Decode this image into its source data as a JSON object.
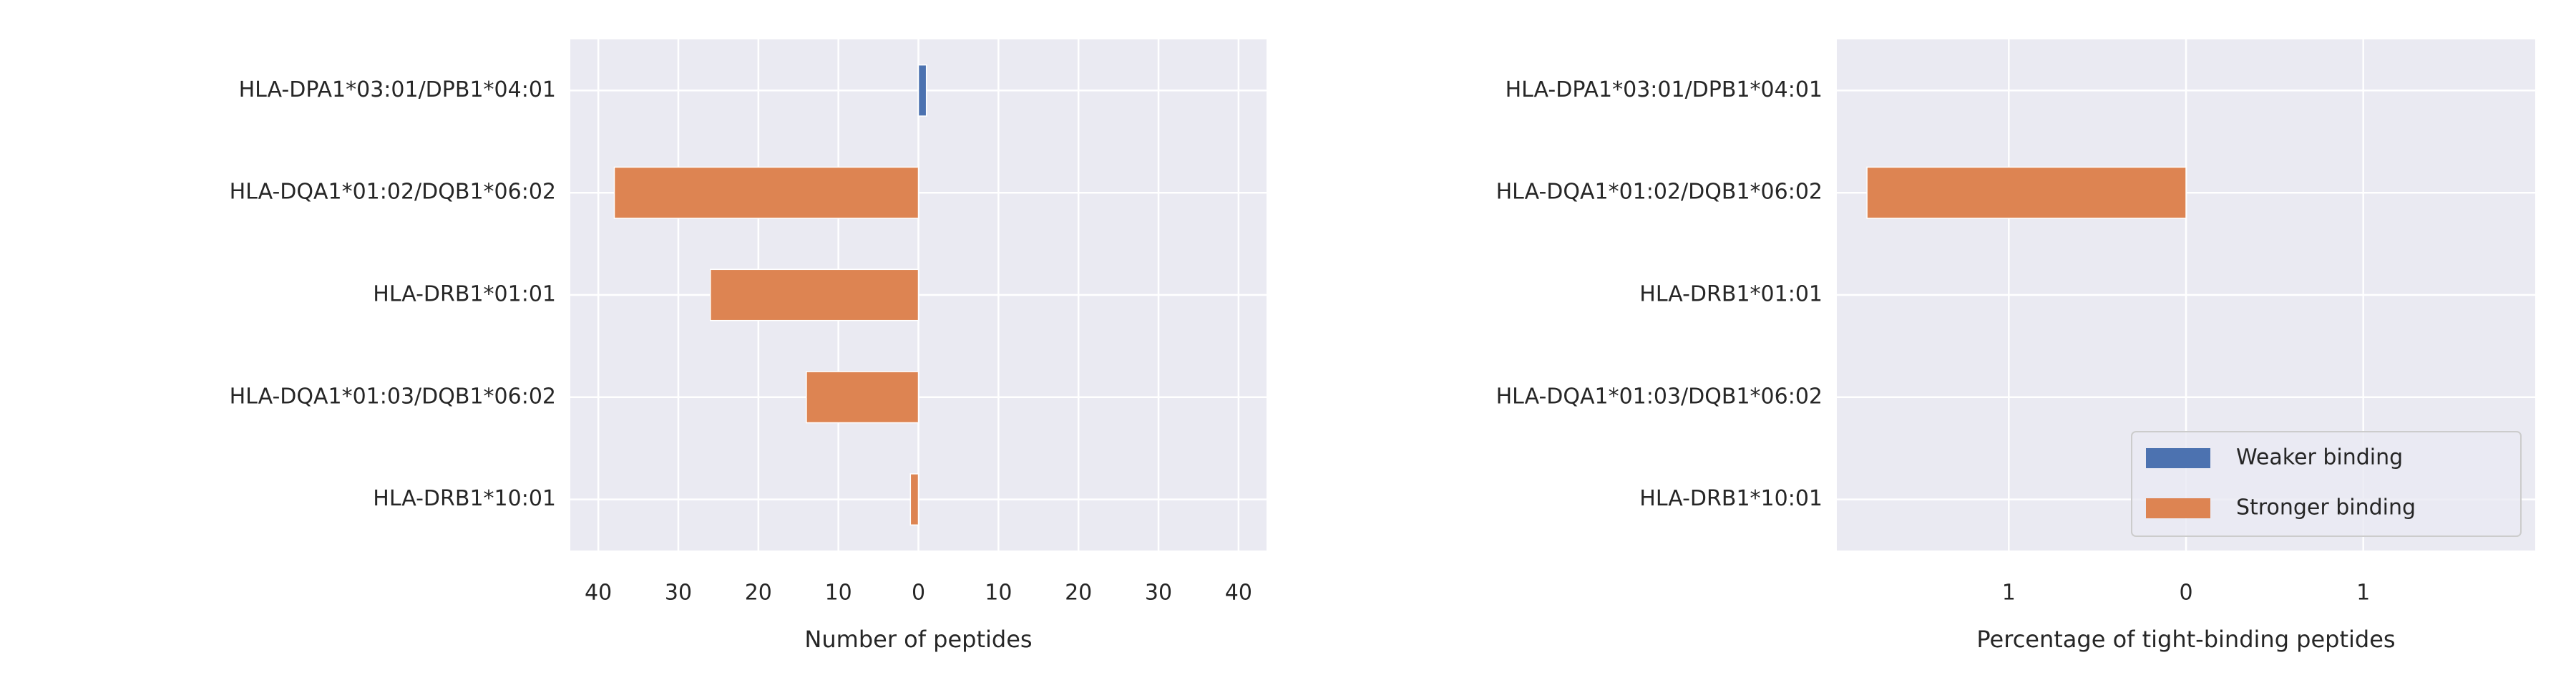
{
  "chart_data": [
    {
      "type": "bar",
      "orientation": "horizontal",
      "xlabel": "Number of peptides",
      "categories": [
        "HLA-DPA1*03:01/DPB1*04:01",
        "HLA-DQA1*01:02/DQB1*06:02",
        "HLA-DRB1*01:01",
        "HLA-DQA1*01:03/DQB1*06:02",
        "HLA-DRB1*10:01"
      ],
      "series": [
        {
          "color": "#4c72b0",
          "values": [
            1,
            0,
            0,
            0,
            0
          ]
        },
        {
          "color": "#dd8452",
          "values": [
            0,
            -38,
            -26,
            -14,
            -1
          ]
        }
      ],
      "xlim": [
        -43.5,
        43.5
      ],
      "xticks": [
        {
          "value": -40,
          "label": "40"
        },
        {
          "value": -30,
          "label": "30"
        },
        {
          "value": -20,
          "label": "20"
        },
        {
          "value": -10,
          "label": "10"
        },
        0,
        10,
        20,
        30,
        40
      ],
      "grid": true
    },
    {
      "type": "bar",
      "orientation": "horizontal",
      "xlabel": "Percentage of tight-binding peptides",
      "categories": [
        "HLA-DPA1*03:01/DPB1*04:01",
        "HLA-DQA1*01:02/DQB1*06:02",
        "HLA-DRB1*01:01",
        "HLA-DQA1*01:03/DQB1*06:02",
        "HLA-DRB1*10:01"
      ],
      "series": [
        {
          "name": "Weaker binding",
          "color": "#4c72b0",
          "values": [
            0,
            0,
            0,
            0,
            0
          ]
        },
        {
          "name": "Stronger binding",
          "color": "#dd8452",
          "values": [
            0,
            -1.8,
            0,
            0,
            0
          ]
        }
      ],
      "xlim": [
        -1.97,
        1.97
      ],
      "xticks": [
        {
          "value": -1,
          "label": "1"
        },
        0,
        1
      ],
      "grid": true,
      "legend": "lower right"
    }
  ]
}
